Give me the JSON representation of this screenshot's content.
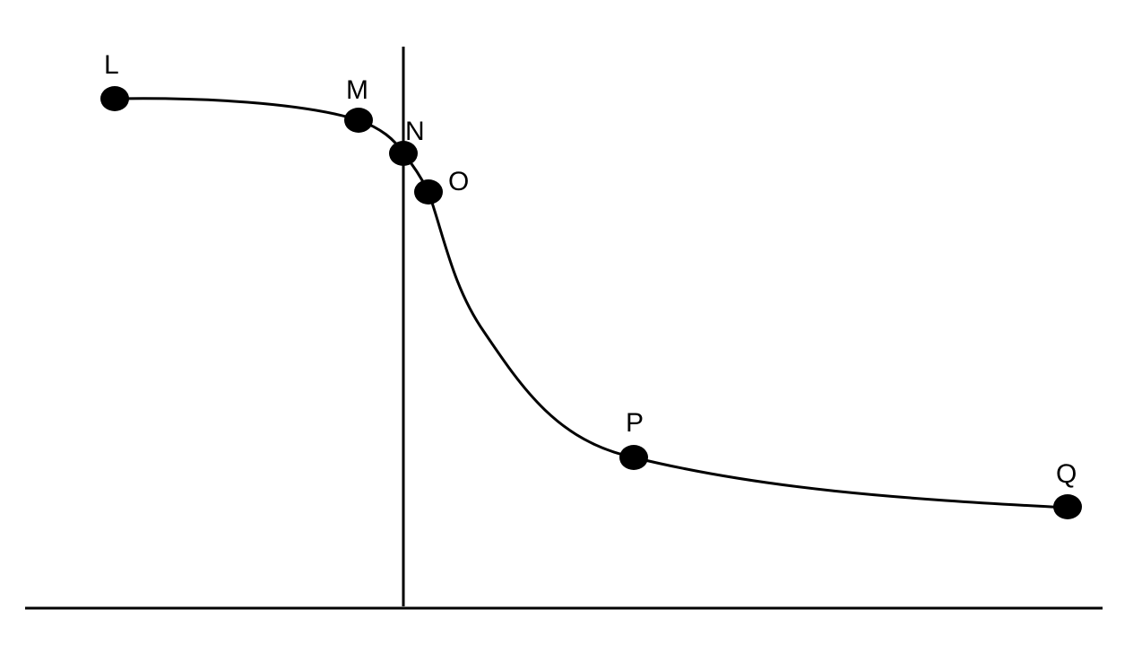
{
  "diagram": {
    "curve_color": "#000000",
    "point_color": "#000000",
    "points": [
      {
        "label": "L"
      },
      {
        "label": "M"
      },
      {
        "label": "N"
      },
      {
        "label": "O"
      },
      {
        "label": "P"
      },
      {
        "label": "Q"
      }
    ]
  }
}
